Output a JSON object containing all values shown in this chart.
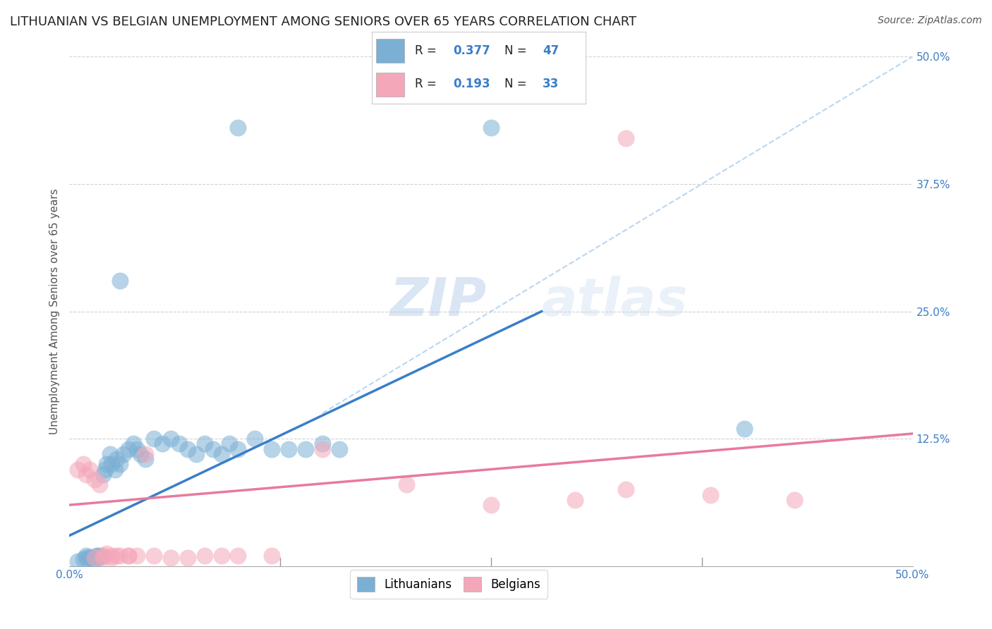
{
  "title": "LITHUANIAN VS BELGIAN UNEMPLOYMENT AMONG SENIORS OVER 65 YEARS CORRELATION CHART",
  "source": "Source: ZipAtlas.com",
  "ylabel": "Unemployment Among Seniors over 65 years",
  "xlim": [
    0,
    0.5
  ],
  "ylim": [
    0,
    0.5
  ],
  "legend_label1": "Lithuanians",
  "legend_label2": "Belgians",
  "blue_color": "#7bafd4",
  "pink_color": "#f4a7b9",
  "blue_line_color": "#3a7ec8",
  "pink_line_color": "#e87a9b",
  "r1": "0.377",
  "n1": "47",
  "r2": "0.193",
  "n2": "33",
  "accent_color": "#3a7ec8",
  "title_fontsize": 13,
  "source_fontsize": 10,
  "axis_label_fontsize": 11,
  "tick_fontsize": 11,
  "background_color": "#ffffff",
  "grid_color": "#cccccc",
  "watermark_zip": "ZIP",
  "watermark_atlas": "atlas",
  "blue_x": [
    0.005,
    0.008,
    0.01,
    0.01,
    0.012,
    0.013,
    0.014,
    0.015,
    0.016,
    0.017,
    0.018,
    0.019,
    0.02,
    0.021,
    0.022,
    0.024,
    0.025,
    0.027,
    0.028,
    0.03,
    0.032,
    0.035,
    0.038,
    0.04,
    0.042,
    0.045,
    0.05,
    0.055,
    0.06,
    0.065,
    0.07,
    0.075,
    0.08,
    0.085,
    0.09,
    0.095,
    0.1,
    0.11,
    0.12,
    0.13,
    0.14,
    0.15,
    0.16,
    0.03,
    0.1,
    0.25,
    0.4
  ],
  "blue_y": [
    0.005,
    0.007,
    0.008,
    0.01,
    0.009,
    0.008,
    0.007,
    0.006,
    0.01,
    0.01,
    0.009,
    0.01,
    0.09,
    0.095,
    0.1,
    0.11,
    0.1,
    0.095,
    0.105,
    0.1,
    0.11,
    0.115,
    0.12,
    0.115,
    0.11,
    0.105,
    0.125,
    0.12,
    0.125,
    0.12,
    0.115,
    0.11,
    0.12,
    0.115,
    0.11,
    0.12,
    0.115,
    0.125,
    0.115,
    0.115,
    0.115,
    0.12,
    0.115,
    0.28,
    0.43,
    0.43,
    0.135
  ],
  "pink_x": [
    0.005,
    0.008,
    0.01,
    0.012,
    0.015,
    0.018,
    0.02,
    0.022,
    0.025,
    0.028,
    0.03,
    0.035,
    0.04,
    0.05,
    0.06,
    0.07,
    0.08,
    0.09,
    0.1,
    0.12,
    0.15,
    0.2,
    0.25,
    0.3,
    0.33,
    0.38,
    0.43,
    0.015,
    0.02,
    0.025,
    0.035,
    0.045,
    0.33
  ],
  "pink_y": [
    0.095,
    0.1,
    0.09,
    0.095,
    0.085,
    0.08,
    0.01,
    0.012,
    0.008,
    0.01,
    0.01,
    0.01,
    0.01,
    0.01,
    0.008,
    0.008,
    0.01,
    0.01,
    0.01,
    0.01,
    0.115,
    0.08,
    0.06,
    0.065,
    0.42,
    0.07,
    0.065,
    0.008,
    0.008,
    0.01,
    0.01,
    0.11,
    0.075
  ],
  "blue_line_x": [
    0.0,
    0.28
  ],
  "blue_line_y": [
    0.03,
    0.25
  ],
  "pink_line_x": [
    0.0,
    0.5
  ],
  "pink_line_y": [
    0.06,
    0.13
  ],
  "diag_line_x": [
    0.15,
    0.5
  ],
  "diag_line_y": [
    0.15,
    0.5
  ]
}
